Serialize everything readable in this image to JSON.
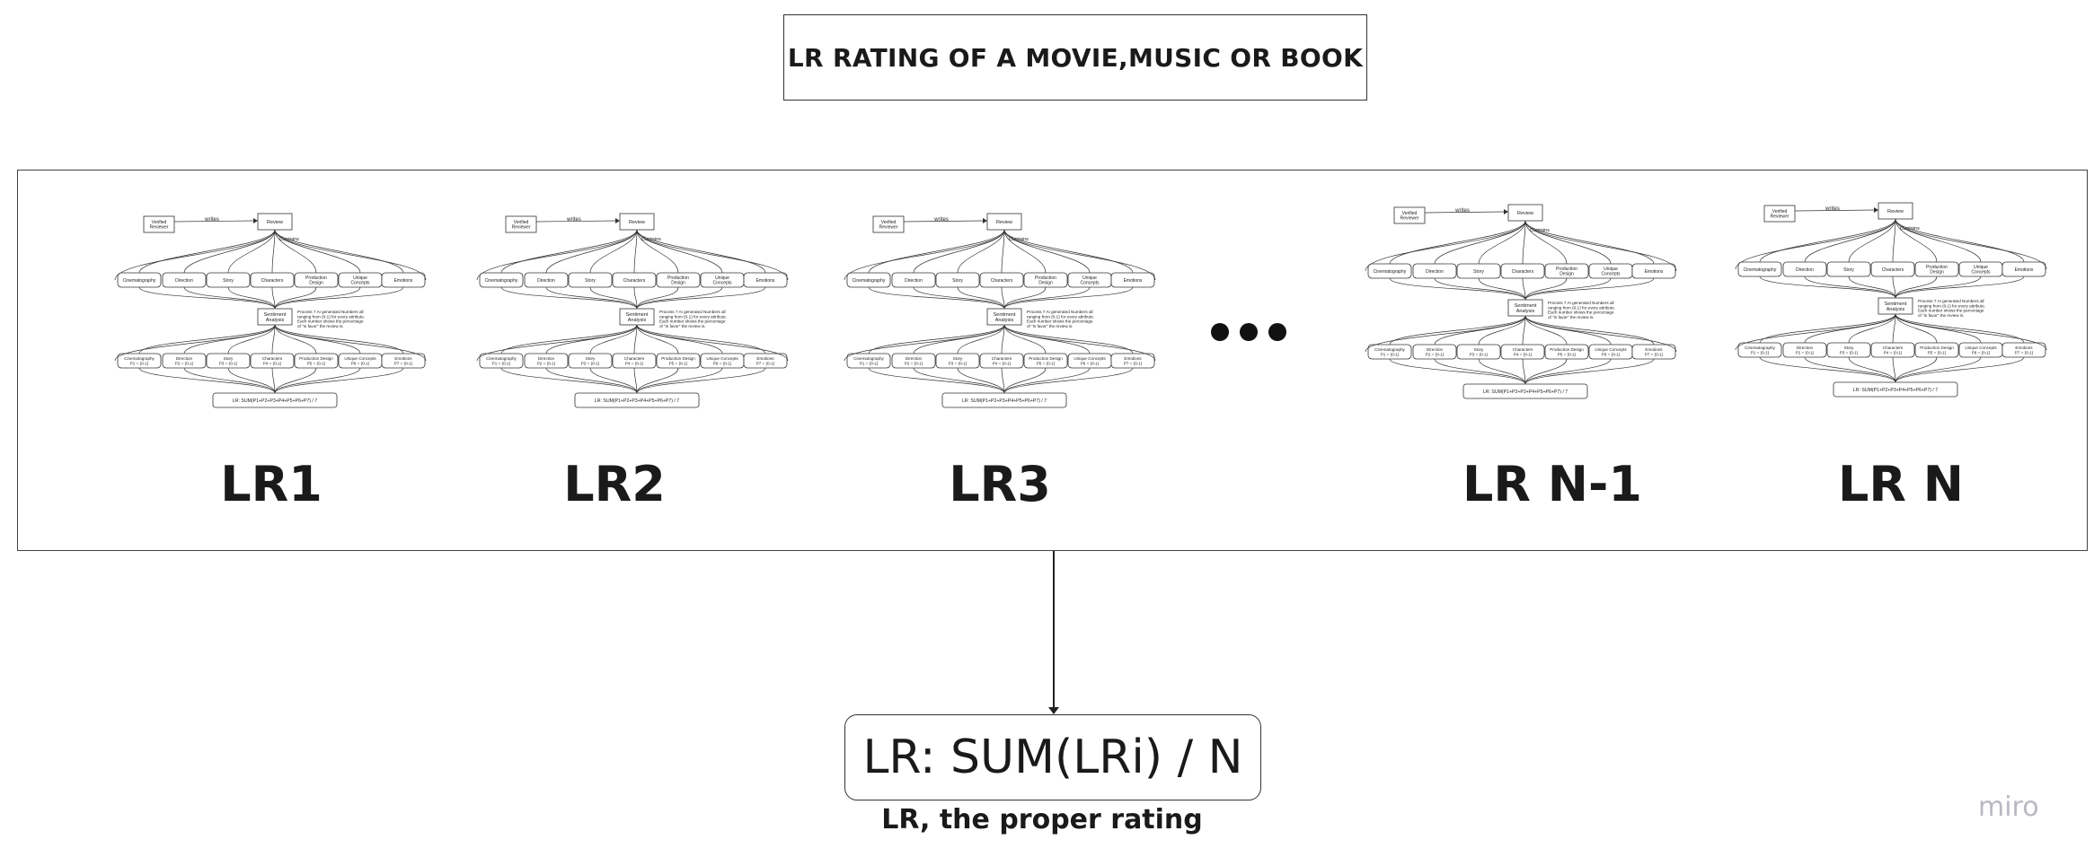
{
  "title": "LR RATING OF A MOVIE,MUSIC OR BOOK",
  "mini_diagram": {
    "reviewer": [
      "Verified",
      "Reviewer"
    ],
    "writes": "writes",
    "review": "Review",
    "contains": "Contains",
    "attributes": [
      [
        "Cinematography"
      ],
      [
        "Direction"
      ],
      [
        "Story"
      ],
      [
        "Characters"
      ],
      [
        "Production",
        "Design"
      ],
      [
        "Unique",
        "Concepts"
      ],
      [
        "Emotions"
      ]
    ],
    "sentiment": [
      "Sentiment",
      "Analysis"
    ],
    "note": [
      "Process 7 AI generated Numbers all",
      "ranging from (0-1) for every attribute.",
      "Each number shows the percentage",
      "of \"in favor\" the review is."
    ],
    "scores": [
      [
        "Cinematography",
        "P1 = (0-1)"
      ],
      [
        "Direction",
        "P2 = (0-1)"
      ],
      [
        "Story",
        "P3 = (0-1)"
      ],
      [
        "Characters",
        "P4 = (0-1)"
      ],
      [
        "Production Design",
        "P5 = (0-1)"
      ],
      [
        "Unique Concepts",
        "P6 = (0-1)"
      ],
      [
        "Emotions",
        "P7 = (0-1)"
      ]
    ],
    "formula": "LR: SUM(P1+P2+P3+P4+P5+P6+P7) / 7"
  },
  "instances": [
    {
      "label": "LR1"
    },
    {
      "label": "LR2"
    },
    {
      "label": "LR3"
    },
    {
      "label": "LR N-1"
    },
    {
      "label": "LR N"
    }
  ],
  "final_formula": "LR: SUM(LRi) / N",
  "caption": "LR, the proper rating",
  "watermark": "miro"
}
